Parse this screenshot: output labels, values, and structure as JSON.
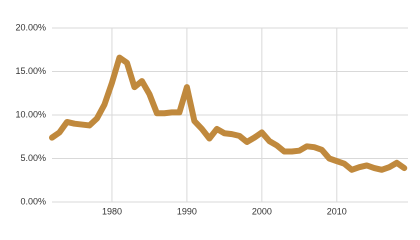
{
  "chart_data": {
    "type": "line",
    "x": [
      1972,
      1973,
      1974,
      1975,
      1976,
      1977,
      1978,
      1979,
      1980,
      1981,
      1982,
      1983,
      1984,
      1985,
      1986,
      1987,
      1988,
      1989,
      1990,
      1991,
      1992,
      1993,
      1994,
      1995,
      1996,
      1997,
      1998,
      1999,
      2000,
      2001,
      2002,
      2003,
      2004,
      2005,
      2006,
      2007,
      2008,
      2009,
      2010,
      2011,
      2012,
      2013,
      2014,
      2015,
      2016,
      2017,
      2018,
      2019
    ],
    "series": [
      {
        "color": "#c0893d",
        "values": [
          7.4,
          8.0,
          9.2,
          9.0,
          8.9,
          8.8,
          9.6,
          11.2,
          13.7,
          16.6,
          16.0,
          13.2,
          13.9,
          12.4,
          10.2,
          10.2,
          10.3,
          10.3,
          13.2,
          9.3,
          8.4,
          7.3,
          8.4,
          7.9,
          7.8,
          7.6,
          6.9,
          7.4,
          8.0,
          7.0,
          6.5,
          5.8,
          5.8,
          5.9,
          6.4,
          6.3,
          6.0,
          5.0,
          4.7,
          4.4,
          3.7,
          4.0,
          4.2,
          3.9,
          3.7,
          4.0,
          4.5,
          3.9
        ]
      }
    ],
    "xlim": [
      1972,
      2019.5
    ],
    "xticks": [
      1980,
      1990,
      2000,
      2010
    ],
    "ylim": [
      0,
      20
    ],
    "yticks": [
      {
        "value": 0,
        "label": "0.00%"
      },
      {
        "value": 5,
        "label": "5.00%"
      },
      {
        "value": 10,
        "label": "10.00%"
      },
      {
        "value": 15,
        "label": "15.00%"
      },
      {
        "value": 20,
        "label": "20.00%"
      }
    ],
    "grid": true
  }
}
